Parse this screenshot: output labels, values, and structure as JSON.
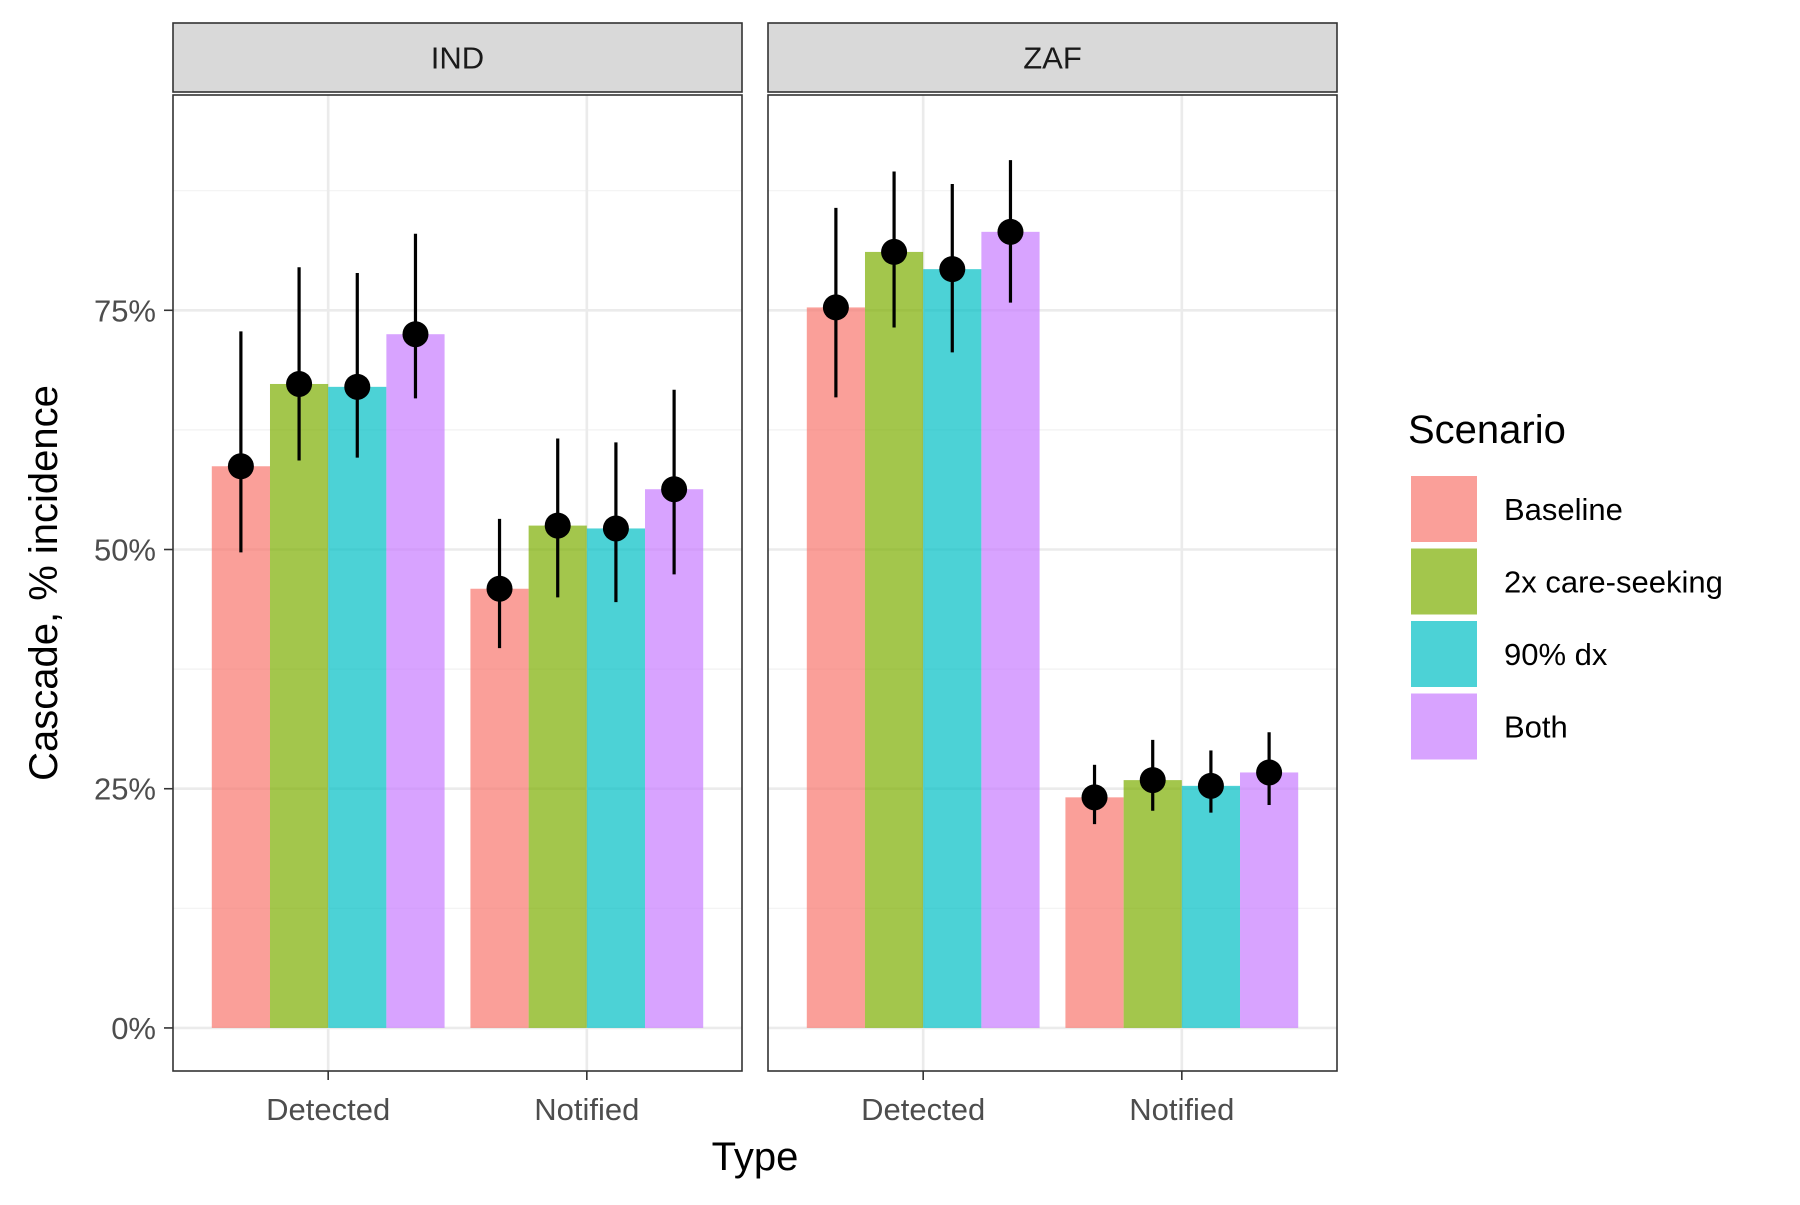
{
  "chart_data": {
    "type": "bar",
    "facets": [
      "IND",
      "ZAF"
    ],
    "categories": [
      "Detected",
      "Notified"
    ],
    "xlabel": "Type",
    "ylabel": "Cascade, % incidence",
    "ylim": [
      -0.045,
      0.975
    ],
    "y_ticks": [
      0,
      0.25,
      0.5,
      0.75
    ],
    "y_tick_labels": [
      "0%",
      "25%",
      "50%",
      "75%"
    ],
    "y_minor_ticks": [
      0.125,
      0.375,
      0.625,
      0.875
    ],
    "grid": true,
    "legend": {
      "title": "Scenario",
      "position": "right"
    },
    "series": [
      {
        "name": "Baseline",
        "color": "#F8766D",
        "values": {
          "IND": [
            {
              "mid": 0.587,
              "lo": 0.497,
              "hi": 0.728
            },
            {
              "mid": 0.459,
              "lo": 0.397,
              "hi": 0.532
            }
          ],
          "ZAF": [
            {
              "mid": 0.753,
              "lo": 0.659,
              "hi": 0.857
            },
            {
              "mid": 0.241,
              "lo": 0.213,
              "hi": 0.275
            }
          ]
        }
      },
      {
        "name": "2x care-seeking",
        "color": "#7CAE00",
        "values": {
          "IND": [
            {
              "mid": 0.673,
              "lo": 0.593,
              "hi": 0.795
            },
            {
              "mid": 0.525,
              "lo": 0.45,
              "hi": 0.616
            }
          ],
          "ZAF": [
            {
              "mid": 0.811,
              "lo": 0.732,
              "hi": 0.895
            },
            {
              "mid": 0.259,
              "lo": 0.227,
              "hi": 0.301
            }
          ]
        }
      },
      {
        "name": "90% dx",
        "color": "#00BFC4",
        "values": {
          "IND": [
            {
              "mid": 0.67,
              "lo": 0.596,
              "hi": 0.789
            },
            {
              "mid": 0.522,
              "lo": 0.445,
              "hi": 0.612
            }
          ],
          "ZAF": [
            {
              "mid": 0.793,
              "lo": 0.706,
              "hi": 0.882
            },
            {
              "mid": 0.253,
              "lo": 0.225,
              "hi": 0.29
            }
          ]
        }
      },
      {
        "name": "Both",
        "color": "#C77CFF",
        "values": {
          "IND": [
            {
              "mid": 0.725,
              "lo": 0.658,
              "hi": 0.83
            },
            {
              "mid": 0.563,
              "lo": 0.474,
              "hi": 0.667
            }
          ],
          "ZAF": [
            {
              "mid": 0.832,
              "lo": 0.758,
              "hi": 0.907
            },
            {
              "mid": 0.267,
              "lo": 0.233,
              "hi": 0.309
            }
          ]
        }
      }
    ]
  }
}
